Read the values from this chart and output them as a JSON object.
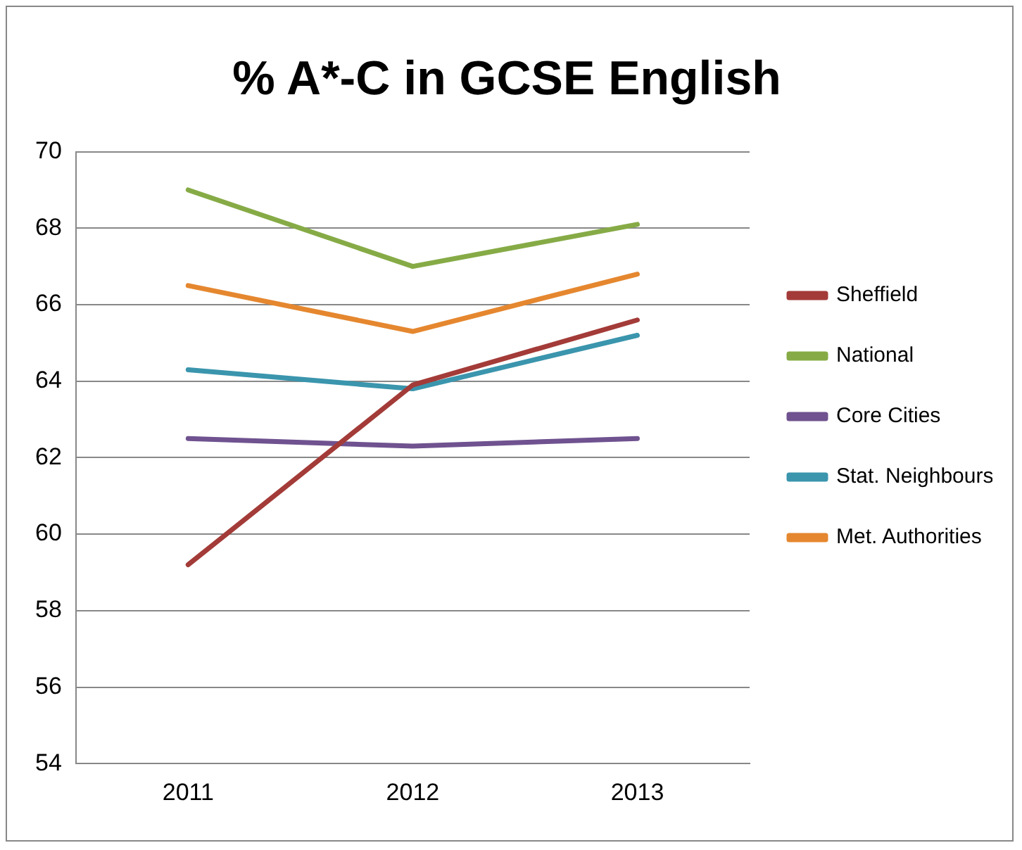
{
  "chart_data": {
    "type": "line",
    "title": "% A*-C in GCSE English",
    "categories": [
      "2011",
      "2012",
      "2013"
    ],
    "series": [
      {
        "name": "Sheffield",
        "color": "#a33b38",
        "values": [
          59.2,
          63.9,
          65.6
        ]
      },
      {
        "name": "National",
        "color": "#86ab46",
        "values": [
          69.0,
          67.0,
          68.1
        ]
      },
      {
        "name": "Core Cities",
        "color": "#6f528f",
        "values": [
          62.5,
          62.3,
          62.5
        ]
      },
      {
        "name": "Stat. Neighbours",
        "color": "#3a95ad",
        "values": [
          64.3,
          63.8,
          65.2
        ]
      },
      {
        "name": "Met. Authorities",
        "color": "#e5872f",
        "values": [
          66.5,
          65.3,
          66.8
        ]
      }
    ],
    "ylim": [
      54,
      70
    ],
    "yticks": [
      54,
      56,
      58,
      60,
      62,
      64,
      66,
      68,
      70
    ],
    "grid": "y",
    "legend": "right",
    "marker": "none",
    "line_style": "solid"
  }
}
